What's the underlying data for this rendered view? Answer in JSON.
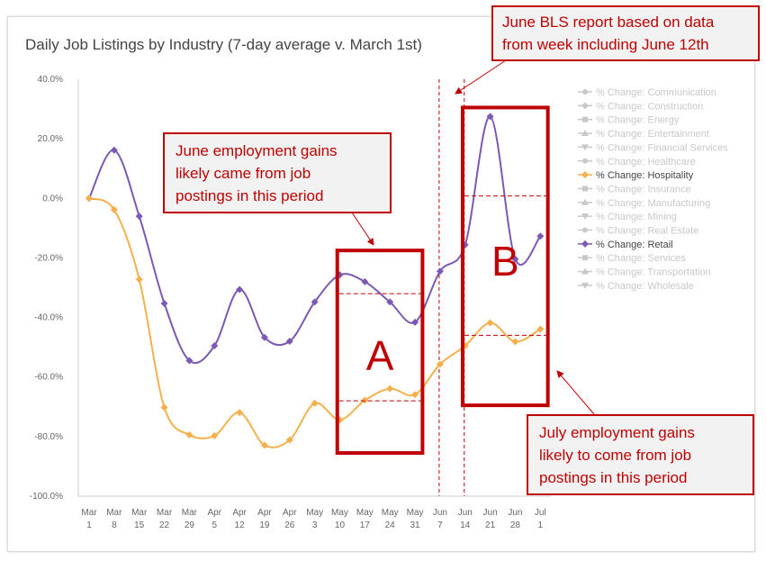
{
  "title": "Daily Job Listings by Industry (7-day average v. March 1st)",
  "callouts": {
    "bls": [
      "June BLS report based on data",
      "from week including June 12th"
    ],
    "june": [
      "June employment gains",
      "likely came from job",
      "postings in this period"
    ],
    "july": [
      "July employment gains",
      "likely to come from job",
      "postings in this period"
    ]
  },
  "boxes": {
    "a_label": "A",
    "b_label": "B"
  },
  "colors": {
    "retail": "#7b59b5",
    "hospitality": "#f5b04d",
    "accent": "#c00000",
    "legend_inactive": "#c8c8c8",
    "legend_active": "#444444"
  },
  "chart_data": {
    "type": "line",
    "title": "Daily Job Listings by Industry (7-day average v. March 1st)",
    "x": [
      {
        "month": "Mar",
        "day": "1"
      },
      {
        "month": "Mar",
        "day": "8"
      },
      {
        "month": "Mar",
        "day": "15"
      },
      {
        "month": "Mar",
        "day": "22"
      },
      {
        "month": "Mar",
        "day": "29"
      },
      {
        "month": "Apr",
        "day": "5"
      },
      {
        "month": "Apr",
        "day": "12"
      },
      {
        "month": "Apr",
        "day": "19"
      },
      {
        "month": "Apr",
        "day": "26"
      },
      {
        "month": "May",
        "day": "3"
      },
      {
        "month": "May",
        "day": "10"
      },
      {
        "month": "May",
        "day": "17"
      },
      {
        "month": "May",
        "day": "24"
      },
      {
        "month": "May",
        "day": "31"
      },
      {
        "month": "Jun",
        "day": "7"
      },
      {
        "month": "Jun",
        "day": "14"
      },
      {
        "month": "Jun",
        "day": "21"
      },
      {
        "month": "Jun",
        "day": "28"
      },
      {
        "month": "Jul",
        "day": "1"
      }
    ],
    "y_ticks": [
      40,
      20,
      0,
      -20,
      -40,
      -60,
      -80,
      -100
    ],
    "y_tick_labels": [
      "40.0%",
      "20.0%",
      "0.0%",
      "-20.0%",
      "-40.0%",
      "-60.0%",
      "-80.0%",
      "-100.0%"
    ],
    "ylim": [
      -100,
      40
    ],
    "grid": false,
    "legend_position": "right",
    "series": [
      {
        "name": "% Change: Retail",
        "color": "#7b59b5",
        "values": [
          0,
          16.2,
          -6,
          -35.3,
          -54.5,
          -49.5,
          -30.6,
          -46.7,
          -48,
          -34.8,
          -25.7,
          -28,
          -34.8,
          -41.6,
          -24.5,
          -15.6,
          27.5,
          -20.4,
          -12.7
        ]
      },
      {
        "name": "% Change: Hospitality",
        "color": "#f5b04d",
        "values": [
          0,
          -3.8,
          -27.2,
          -70.2,
          -79.4,
          -79.7,
          -71.9,
          -82.9,
          -81.1,
          -68.8,
          -74.4,
          -67.8,
          -63.9,
          -65.9,
          -55.7,
          -49.5,
          -41.8,
          -48.1,
          -43.9
        ]
      }
    ],
    "legend": [
      {
        "label": "% Change: Communication",
        "marker": "circle",
        "active": false
      },
      {
        "label": "% Change: Construction",
        "marker": "diamond",
        "active": false
      },
      {
        "label": "% Change: Energy",
        "marker": "square",
        "active": false
      },
      {
        "label": "% Change: Entertainment",
        "marker": "triangle-up",
        "active": false
      },
      {
        "label": "% Change: Financial Services",
        "marker": "triangle-down",
        "active": false
      },
      {
        "label": "% Change: Healthcare",
        "marker": "circle",
        "active": false
      },
      {
        "label": "% Change: Hospitality",
        "marker": "diamond",
        "active": true,
        "color": "#f5b04d"
      },
      {
        "label": "% Change: Insurance",
        "marker": "square",
        "active": false
      },
      {
        "label": "% Change: Manufacturing",
        "marker": "triangle-up",
        "active": false
      },
      {
        "label": "% Change: Mining",
        "marker": "triangle-down",
        "active": false
      },
      {
        "label": "% Change: Real Estate",
        "marker": "circle",
        "active": false
      },
      {
        "label": "% Change: Retail",
        "marker": "diamond",
        "active": true,
        "color": "#7b59b5"
      },
      {
        "label": "% Change: Services",
        "marker": "square",
        "active": false
      },
      {
        "label": "% Change: Transportation",
        "marker": "triangle-up",
        "active": false
      },
      {
        "label": "% Change: Wholesale",
        "marker": "triangle-down",
        "active": false
      }
    ],
    "annotations": {
      "dashed_vertical_x_index": [
        14,
        15
      ],
      "box_a": {
        "from_index": 9.9,
        "to_index": 13.3,
        "ymax": -17.5,
        "ymin": -85.5,
        "label": "A",
        "ref_lines": [
          -32,
          -68
        ]
      },
      "box_b": {
        "from_index": 14.9,
        "to_index": 18.3,
        "ymax": 30.5,
        "ymin": -69.5,
        "label": "B",
        "ref_lines": [
          0.8,
          -46
        ]
      }
    }
  }
}
